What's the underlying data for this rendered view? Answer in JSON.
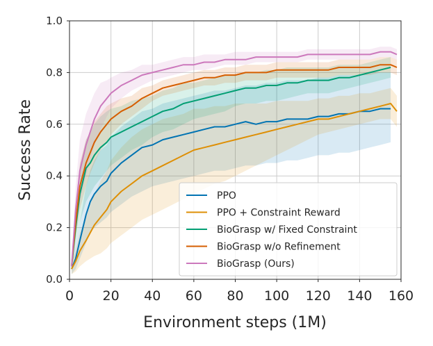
{
  "chart_data": {
    "type": "line",
    "title": "",
    "xlabel": "Environment steps (1M)",
    "ylabel": "Success Rate",
    "xlim": [
      0,
      160
    ],
    "ylim": [
      0,
      1.0
    ],
    "xticks": [
      0,
      20,
      40,
      60,
      80,
      100,
      120,
      140,
      160
    ],
    "yticks": [
      0.0,
      0.2,
      0.4,
      0.6,
      0.8,
      1.0
    ],
    "ytick_labels": [
      "0.0",
      "0.2",
      "0.4",
      "0.6",
      "0.8",
      "1.0"
    ],
    "grid": true,
    "legend_position": "lower-right",
    "series": [
      {
        "name": "PPO",
        "color": "#0173b2",
        "x": [
          1,
          3,
          5,
          8,
          10,
          12,
          15,
          18,
          20,
          25,
          30,
          35,
          40,
          45,
          50,
          55,
          60,
          65,
          70,
          75,
          80,
          85,
          90,
          95,
          100,
          105,
          110,
          115,
          120,
          125,
          130,
          135,
          140,
          145,
          150,
          155
        ],
        "y": [
          0.04,
          0.08,
          0.15,
          0.25,
          0.3,
          0.33,
          0.36,
          0.38,
          0.41,
          0.45,
          0.48,
          0.51,
          0.52,
          0.54,
          0.55,
          0.56,
          0.57,
          0.58,
          0.59,
          0.59,
          0.6,
          0.61,
          0.6,
          0.61,
          0.61,
          0.62,
          0.62,
          0.62,
          0.63,
          0.63,
          0.64,
          0.64,
          0.65,
          0.65,
          0.66,
          0.66
        ],
        "lower": [
          0.02,
          0.04,
          0.08,
          0.14,
          0.18,
          0.2,
          0.22,
          0.24,
          0.26,
          0.29,
          0.32,
          0.34,
          0.36,
          0.37,
          0.38,
          0.39,
          0.4,
          0.41,
          0.42,
          0.42,
          0.43,
          0.44,
          0.44,
          0.45,
          0.45,
          0.46,
          0.46,
          0.47,
          0.48,
          0.48,
          0.49,
          0.49,
          0.5,
          0.51,
          0.52,
          0.53
        ],
        "upper": [
          0.06,
          0.13,
          0.22,
          0.36,
          0.42,
          0.46,
          0.5,
          0.52,
          0.55,
          0.59,
          0.62,
          0.65,
          0.66,
          0.68,
          0.69,
          0.7,
          0.71,
          0.72,
          0.73,
          0.73,
          0.74,
          0.75,
          0.75,
          0.76,
          0.76,
          0.77,
          0.77,
          0.77,
          0.78,
          0.78,
          0.79,
          0.79,
          0.79,
          0.8,
          0.8,
          0.8
        ]
      },
      {
        "name": "PPO + Constraint Reward",
        "color": "#de8f05",
        "x": [
          1,
          3,
          5,
          8,
          10,
          12,
          15,
          18,
          20,
          25,
          30,
          35,
          40,
          45,
          50,
          55,
          60,
          65,
          70,
          75,
          80,
          85,
          90,
          95,
          100,
          105,
          110,
          115,
          120,
          125,
          130,
          135,
          140,
          145,
          150,
          155,
          158
        ],
        "y": [
          0.04,
          0.07,
          0.11,
          0.15,
          0.18,
          0.21,
          0.24,
          0.27,
          0.3,
          0.34,
          0.37,
          0.4,
          0.42,
          0.44,
          0.46,
          0.48,
          0.5,
          0.51,
          0.52,
          0.53,
          0.54,
          0.55,
          0.56,
          0.57,
          0.58,
          0.59,
          0.6,
          0.61,
          0.62,
          0.62,
          0.63,
          0.64,
          0.65,
          0.66,
          0.67,
          0.68,
          0.65
        ],
        "lower": [
          0.02,
          0.03,
          0.05,
          0.07,
          0.08,
          0.09,
          0.1,
          0.12,
          0.14,
          0.17,
          0.2,
          0.23,
          0.25,
          0.27,
          0.29,
          0.31,
          0.33,
          0.35,
          0.37,
          0.38,
          0.4,
          0.42,
          0.44,
          0.46,
          0.48,
          0.5,
          0.52,
          0.54,
          0.56,
          0.57,
          0.58,
          0.59,
          0.6,
          0.61,
          0.62,
          0.62,
          0.59
        ],
        "upper": [
          0.06,
          0.11,
          0.18,
          0.24,
          0.29,
          0.33,
          0.38,
          0.42,
          0.46,
          0.51,
          0.55,
          0.58,
          0.6,
          0.62,
          0.63,
          0.64,
          0.66,
          0.66,
          0.67,
          0.67,
          0.68,
          0.68,
          0.68,
          0.68,
          0.69,
          0.69,
          0.69,
          0.69,
          0.7,
          0.7,
          0.71,
          0.71,
          0.72,
          0.72,
          0.73,
          0.74,
          0.71
        ]
      },
      {
        "name": "BioGrasp w/ Fixed Constraint",
        "color": "#029e73",
        "x": [
          1,
          3,
          5,
          8,
          10,
          12,
          15,
          18,
          20,
          25,
          30,
          35,
          40,
          45,
          50,
          55,
          60,
          65,
          70,
          75,
          80,
          85,
          90,
          95,
          100,
          105,
          110,
          115,
          120,
          125,
          130,
          135,
          140,
          145,
          150,
          155
        ],
        "y": [
          0.05,
          0.2,
          0.33,
          0.43,
          0.45,
          0.48,
          0.51,
          0.53,
          0.55,
          0.57,
          0.59,
          0.61,
          0.63,
          0.65,
          0.66,
          0.68,
          0.69,
          0.7,
          0.71,
          0.72,
          0.73,
          0.74,
          0.74,
          0.75,
          0.75,
          0.76,
          0.76,
          0.77,
          0.77,
          0.77,
          0.78,
          0.78,
          0.79,
          0.8,
          0.81,
          0.82
        ],
        "lower": [
          0.03,
          0.13,
          0.22,
          0.3,
          0.33,
          0.36,
          0.39,
          0.42,
          0.44,
          0.47,
          0.5,
          0.52,
          0.55,
          0.57,
          0.58,
          0.6,
          0.62,
          0.63,
          0.64,
          0.65,
          0.67,
          0.68,
          0.68,
          0.69,
          0.69,
          0.7,
          0.71,
          0.72,
          0.72,
          0.72,
          0.73,
          0.74,
          0.75,
          0.76,
          0.77,
          0.78
        ],
        "upper": [
          0.07,
          0.28,
          0.44,
          0.54,
          0.57,
          0.6,
          0.63,
          0.65,
          0.66,
          0.67,
          0.69,
          0.7,
          0.71,
          0.73,
          0.74,
          0.76,
          0.76,
          0.77,
          0.78,
          0.79,
          0.79,
          0.8,
          0.8,
          0.81,
          0.81,
          0.82,
          0.82,
          0.82,
          0.82,
          0.82,
          0.83,
          0.83,
          0.83,
          0.84,
          0.85,
          0.86
        ]
      },
      {
        "name": "BioGrasp w/o Refinement",
        "color": "#d55e00",
        "x": [
          1,
          3,
          5,
          8,
          10,
          12,
          15,
          18,
          20,
          25,
          30,
          35,
          40,
          45,
          50,
          55,
          60,
          65,
          70,
          75,
          80,
          85,
          90,
          95,
          100,
          105,
          110,
          115,
          120,
          125,
          130,
          135,
          140,
          145,
          150,
          155,
          158
        ],
        "y": [
          0.05,
          0.22,
          0.36,
          0.45,
          0.49,
          0.53,
          0.57,
          0.6,
          0.62,
          0.65,
          0.67,
          0.7,
          0.72,
          0.74,
          0.75,
          0.76,
          0.77,
          0.78,
          0.78,
          0.79,
          0.79,
          0.8,
          0.8,
          0.8,
          0.81,
          0.81,
          0.81,
          0.81,
          0.81,
          0.81,
          0.82,
          0.82,
          0.82,
          0.82,
          0.83,
          0.83,
          0.82
        ],
        "lower": [
          0.03,
          0.16,
          0.27,
          0.36,
          0.41,
          0.45,
          0.5,
          0.53,
          0.56,
          0.6,
          0.63,
          0.66,
          0.69,
          0.71,
          0.72,
          0.73,
          0.74,
          0.75,
          0.75,
          0.76,
          0.76,
          0.77,
          0.77,
          0.77,
          0.78,
          0.78,
          0.78,
          0.78,
          0.78,
          0.78,
          0.79,
          0.79,
          0.79,
          0.79,
          0.8,
          0.8,
          0.79
        ],
        "upper": [
          0.07,
          0.28,
          0.45,
          0.54,
          0.57,
          0.61,
          0.64,
          0.67,
          0.68,
          0.7,
          0.71,
          0.74,
          0.75,
          0.77,
          0.78,
          0.79,
          0.8,
          0.81,
          0.81,
          0.82,
          0.82,
          0.83,
          0.83,
          0.83,
          0.84,
          0.84,
          0.84,
          0.84,
          0.84,
          0.84,
          0.85,
          0.85,
          0.85,
          0.85,
          0.86,
          0.86,
          0.85
        ]
      },
      {
        "name": "BioGrasp (Ours)",
        "color": "#cc78bc",
        "x": [
          1,
          3,
          5,
          8,
          10,
          12,
          15,
          18,
          20,
          25,
          30,
          35,
          40,
          45,
          50,
          55,
          60,
          65,
          70,
          75,
          80,
          85,
          90,
          95,
          100,
          105,
          110,
          115,
          120,
          125,
          130,
          135,
          140,
          145,
          150,
          155,
          158
        ],
        "y": [
          0.05,
          0.27,
          0.42,
          0.52,
          0.57,
          0.62,
          0.67,
          0.7,
          0.72,
          0.75,
          0.77,
          0.79,
          0.8,
          0.81,
          0.82,
          0.83,
          0.83,
          0.84,
          0.84,
          0.85,
          0.85,
          0.85,
          0.86,
          0.86,
          0.86,
          0.86,
          0.86,
          0.87,
          0.87,
          0.87,
          0.87,
          0.87,
          0.87,
          0.87,
          0.88,
          0.88,
          0.87
        ],
        "lower": [
          0.03,
          0.18,
          0.3,
          0.4,
          0.46,
          0.52,
          0.58,
          0.63,
          0.66,
          0.7,
          0.73,
          0.75,
          0.77,
          0.78,
          0.79,
          0.8,
          0.81,
          0.81,
          0.82,
          0.83,
          0.83,
          0.83,
          0.84,
          0.84,
          0.84,
          0.84,
          0.84,
          0.85,
          0.85,
          0.85,
          0.85,
          0.85,
          0.85,
          0.85,
          0.86,
          0.86,
          0.85
        ],
        "upper": [
          0.07,
          0.36,
          0.54,
          0.64,
          0.68,
          0.72,
          0.76,
          0.77,
          0.78,
          0.8,
          0.81,
          0.83,
          0.83,
          0.84,
          0.85,
          0.86,
          0.86,
          0.87,
          0.87,
          0.87,
          0.88,
          0.88,
          0.88,
          0.88,
          0.88,
          0.88,
          0.88,
          0.89,
          0.89,
          0.89,
          0.89,
          0.89,
          0.89,
          0.89,
          0.9,
          0.9,
          0.89
        ]
      }
    ]
  }
}
